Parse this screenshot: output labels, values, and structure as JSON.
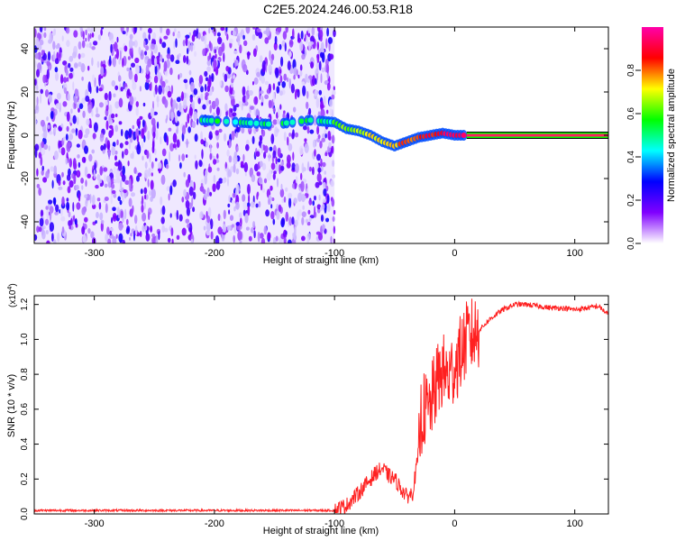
{
  "title": "C2E5.2024.246.00.53.R18",
  "chart_data": [
    {
      "type": "heatmap",
      "title": "",
      "xlabel": "Height of straight line (km)",
      "ylabel": "Frequency (Hz)",
      "xlim": [
        -350,
        128
      ],
      "ylim": [
        -50,
        50
      ],
      "xticks": [
        -300,
        -200,
        -100,
        0,
        100
      ],
      "yticks": [
        -40,
        -20,
        0,
        20,
        40
      ],
      "colorbar": {
        "label": "Normalized spectral amplitude",
        "range": [
          0,
          1
        ],
        "ticks": [
          "0.0",
          "0.2",
          "0.4",
          "0.6",
          "0.8"
        ],
        "colors": [
          "#ffffff",
          "#8000ff",
          "#0000ff",
          "#00ffff",
          "#00ff00",
          "#ffff00",
          "#ff0000",
          "#ff00aa"
        ]
      },
      "noise_region_x": [
        -350,
        -100
      ],
      "ridge": {
        "description_points": [
          [
            -210,
            7
          ],
          [
            -150,
            5
          ],
          [
            -120,
            7
          ],
          [
            -100,
            6
          ],
          [
            -90,
            3
          ],
          [
            -80,
            2
          ],
          [
            -70,
            0
          ],
          [
            -60,
            -3
          ],
          [
            -50,
            -5
          ],
          [
            -40,
            -3
          ],
          [
            -30,
            -1
          ],
          [
            -20,
            0
          ],
          [
            -10,
            1
          ],
          [
            0,
            0
          ],
          [
            10,
            0
          ],
          [
            128,
            0
          ]
        ]
      }
    },
    {
      "type": "line",
      "title": "",
      "xlabel": "Height of straight line (km)",
      "ylabel": "SNR (10 * v/v)",
      "y_multiplier": "(x10",
      "y_multiplier_exp": "4",
      "y_multiplier_close": ")",
      "xlim": [
        -350,
        128
      ],
      "ylim": [
        0,
        1.25
      ],
      "xticks": [
        -300,
        -200,
        -100,
        0,
        100
      ],
      "yticks": [
        "0.0",
        "0.2",
        "0.4",
        "0.6",
        "0.8",
        "1.0",
        "1.2"
      ],
      "series": [
        {
          "color": "#ff2020",
          "x": [
            -350,
            -300,
            -250,
            -200,
            -150,
            -100,
            -90,
            -80,
            -70,
            -65,
            -60,
            -55,
            -50,
            -45,
            -40,
            -35,
            -30,
            -28,
            -25,
            -22,
            -20,
            -15,
            -10,
            -5,
            0,
            5,
            10,
            20,
            30,
            40,
            50,
            60,
            70,
            80,
            90,
            100,
            110,
            120,
            128
          ],
          "y": [
            0.02,
            0.02,
            0.02,
            0.02,
            0.02,
            0.02,
            0.05,
            0.12,
            0.2,
            0.24,
            0.26,
            0.22,
            0.2,
            0.15,
            0.1,
            0.12,
            0.35,
            0.55,
            0.6,
            0.58,
            0.62,
            0.75,
            0.82,
            0.78,
            0.85,
            0.92,
            1.0,
            1.05,
            1.12,
            1.17,
            1.2,
            1.2,
            1.19,
            1.18,
            1.18,
            1.17,
            1.18,
            1.19,
            1.14
          ]
        }
      ]
    }
  ]
}
